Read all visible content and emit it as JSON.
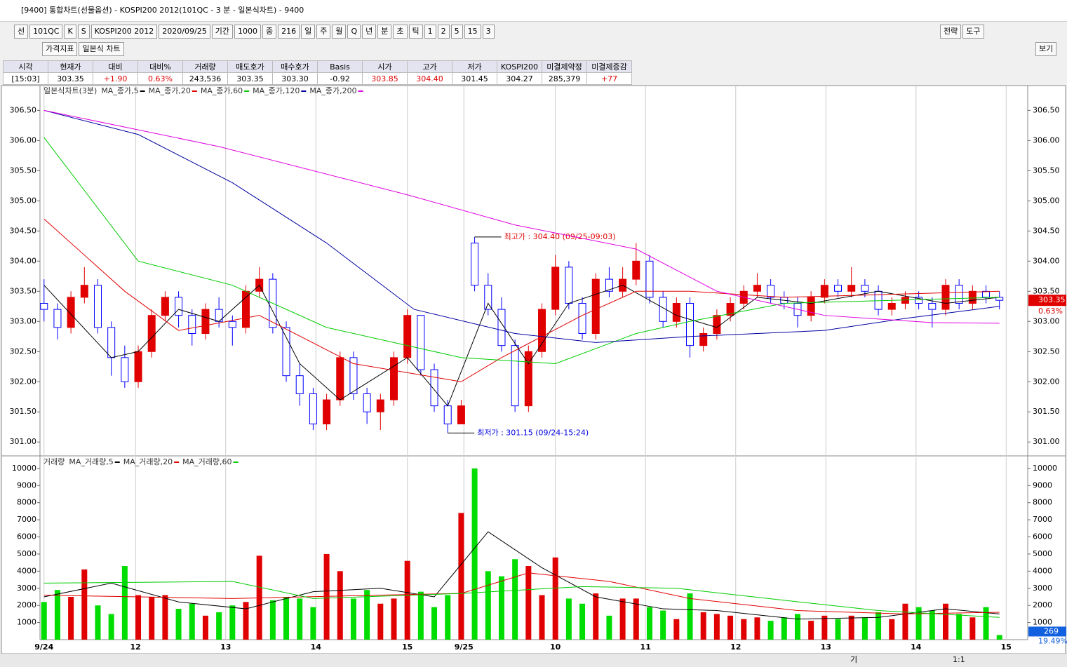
{
  "window": {
    "title": "[9400] 통합차트(선물옵션) - KOSPI200 2012(101QC - 3 분 - 일본식차트) - 9400"
  },
  "toolbar": {
    "row1": [
      "선",
      "101QC",
      "K",
      "S",
      "KOSPI200 2012",
      "2020/09/25",
      "기간",
      "1000",
      "중",
      "216",
      "일",
      "주",
      "월",
      "Q",
      "년",
      "분",
      "초",
      "틱",
      "1",
      "2",
      "5",
      "15",
      "3"
    ],
    "row1_right": [
      "전략",
      "도구"
    ],
    "row2": [
      "가격지표",
      "일본식 차트"
    ],
    "row2_right": [
      "보기"
    ]
  },
  "quote": {
    "headers": [
      "시각",
      "현재가",
      "대비",
      "대비%",
      "거래량",
      "매도호가",
      "매수호가",
      "Basis",
      "시가",
      "고가",
      "저가",
      "KOSPI200",
      "미결제약정",
      "미결제증감"
    ],
    "values": [
      "[15:03]",
      "303.35",
      "+1.90",
      "0.63%",
      "243,536",
      "303.35",
      "303.30",
      "-0.92",
      "303.85",
      "304.40",
      "301.45",
      "304.27",
      "285,379",
      "+77"
    ],
    "value_colors": [
      "#000",
      "#000",
      "#e00000",
      "#e00000",
      "#000",
      "#000",
      "#000",
      "#000",
      "#e00000",
      "#e00000",
      "#000",
      "#000",
      "#000",
      "#e00000"
    ]
  },
  "chart_data": [
    {
      "type": "candlestick",
      "title": "일본식차트(3분)",
      "up_color": "#e00000",
      "down_color": "#0000ff",
      "ohlc": [
        [
          303.3,
          303.7,
          303.0,
          303.2
        ],
        [
          303.2,
          303.3,
          302.7,
          302.9
        ],
        [
          302.9,
          303.5,
          302.8,
          303.4
        ],
        [
          303.4,
          303.9,
          303.3,
          303.6
        ],
        [
          303.6,
          303.7,
          302.8,
          302.9
        ],
        [
          302.9,
          303.0,
          302.1,
          302.4
        ],
        [
          302.4,
          302.6,
          301.9,
          302.0
        ],
        [
          302.0,
          302.6,
          301.9,
          302.5
        ],
        [
          302.5,
          303.2,
          302.4,
          303.1
        ],
        [
          303.1,
          303.5,
          303.0,
          303.4
        ],
        [
          303.4,
          303.5,
          302.9,
          303.1
        ],
        [
          303.1,
          303.2,
          302.6,
          302.8
        ],
        [
          302.8,
          303.3,
          302.7,
          303.2
        ],
        [
          303.2,
          303.4,
          302.9,
          303.0
        ],
        [
          303.0,
          303.1,
          302.6,
          302.9
        ],
        [
          302.9,
          303.6,
          302.8,
          303.5
        ],
        [
          303.5,
          303.9,
          303.4,
          303.7
        ],
        [
          303.7,
          303.8,
          302.8,
          302.9
        ],
        [
          302.9,
          303.0,
          302.0,
          302.1
        ],
        [
          302.1,
          302.3,
          301.6,
          301.8
        ],
        [
          301.8,
          301.9,
          301.2,
          301.3
        ],
        [
          301.3,
          301.8,
          301.2,
          301.7
        ],
        [
          301.7,
          302.5,
          301.6,
          302.4
        ],
        [
          302.4,
          302.5,
          301.7,
          301.8
        ],
        [
          301.8,
          301.9,
          301.3,
          301.5
        ],
        [
          301.5,
          301.8,
          301.2,
          301.7
        ],
        [
          301.7,
          302.5,
          301.6,
          302.4
        ],
        [
          302.4,
          303.2,
          302.3,
          303.1
        ],
        [
          303.1,
          303.1,
          302.1,
          302.2
        ],
        [
          302.2,
          302.3,
          301.5,
          301.6
        ],
        [
          301.6,
          301.7,
          301.15,
          301.3
        ],
        [
          301.3,
          301.7,
          301.3,
          301.6
        ],
        [
          304.3,
          304.4,
          303.5,
          303.6
        ],
        [
          303.6,
          303.8,
          303.1,
          303.2
        ],
        [
          303.2,
          303.4,
          302.5,
          302.6
        ],
        [
          302.6,
          302.7,
          301.5,
          301.6
        ],
        [
          301.6,
          302.6,
          301.5,
          302.5
        ],
        [
          302.5,
          303.3,
          302.4,
          303.2
        ],
        [
          303.2,
          304.1,
          303.1,
          303.9
        ],
        [
          303.9,
          304.0,
          303.2,
          303.3
        ],
        [
          303.3,
          303.4,
          302.7,
          302.8
        ],
        [
          302.8,
          303.8,
          302.7,
          303.7
        ],
        [
          303.7,
          303.9,
          303.4,
          303.5
        ],
        [
          303.5,
          303.9,
          303.4,
          303.7
        ],
        [
          303.7,
          304.3,
          303.6,
          304.0
        ],
        [
          304.0,
          304.1,
          303.3,
          303.4
        ],
        [
          303.4,
          303.5,
          302.9,
          303.0
        ],
        [
          303.0,
          303.4,
          302.9,
          303.3
        ],
        [
          303.3,
          303.4,
          302.4,
          302.6
        ],
        [
          302.6,
          302.9,
          302.5,
          302.8
        ],
        [
          302.8,
          303.2,
          302.7,
          303.1
        ],
        [
          303.1,
          303.4,
          303.0,
          303.3
        ],
        [
          303.3,
          303.6,
          303.2,
          303.5
        ],
        [
          303.5,
          303.8,
          303.4,
          303.6
        ],
        [
          303.6,
          303.7,
          303.3,
          303.4
        ],
        [
          303.4,
          303.5,
          303.2,
          303.3
        ],
        [
          303.3,
          303.4,
          302.9,
          303.1
        ],
        [
          303.1,
          303.5,
          303.0,
          303.4
        ],
        [
          303.4,
          303.7,
          303.3,
          303.6
        ],
        [
          303.6,
          303.7,
          303.4,
          303.5
        ],
        [
          303.5,
          303.9,
          303.4,
          303.6
        ],
        [
          303.6,
          303.7,
          303.4,
          303.5
        ],
        [
          303.5,
          303.6,
          303.1,
          303.2
        ],
        [
          303.2,
          303.4,
          303.1,
          303.3
        ],
        [
          303.3,
          303.5,
          303.2,
          303.4
        ],
        [
          303.4,
          303.5,
          303.2,
          303.3
        ],
        [
          303.3,
          303.4,
          302.9,
          303.2
        ],
        [
          303.2,
          303.7,
          303.1,
          303.6
        ],
        [
          303.6,
          303.7,
          303.2,
          303.3
        ],
        [
          303.3,
          303.6,
          303.2,
          303.5
        ],
        [
          303.5,
          303.6,
          303.3,
          303.4
        ],
        [
          303.4,
          303.5,
          303.2,
          303.35
        ]
      ],
      "series": [
        {
          "name": "MA_종가,5",
          "color": "#000000",
          "x": [
            0,
            5,
            7,
            10,
            13,
            16,
            19,
            22,
            27,
            30,
            33,
            36,
            39,
            43,
            47,
            50,
            53,
            57,
            62,
            67,
            71
          ],
          "values": [
            303.6,
            302.4,
            302.5,
            303.2,
            303.0,
            303.6,
            302.3,
            301.7,
            302.4,
            301.6,
            303.3,
            302.3,
            303.3,
            303.6,
            303.1,
            302.9,
            303.4,
            303.3,
            303.5,
            303.3,
            303.4
          ]
        },
        {
          "name": "MA_종가,20",
          "color": "#e00000",
          "x": [
            0,
            6,
            10,
            16,
            23,
            31,
            34,
            40,
            44,
            48,
            55,
            71
          ],
          "values": [
            304.7,
            303.5,
            302.85,
            303.1,
            302.3,
            302.0,
            302.4,
            303.1,
            303.5,
            303.5,
            303.4,
            303.5
          ]
        },
        {
          "name": "MA_종가,60",
          "color": "#00cc00",
          "x": [
            0,
            7,
            14,
            21,
            31,
            38,
            44,
            48,
            55,
            71
          ],
          "values": [
            306.05,
            304.0,
            303.6,
            302.9,
            302.4,
            302.3,
            302.8,
            303.0,
            303.3,
            303.4
          ]
        },
        {
          "name": "MA_종가,120",
          "color": "#0000a0",
          "x": [
            0,
            7,
            14,
            21,
            27.5,
            35,
            41,
            48,
            58,
            64,
            71
          ],
          "values": [
            306.5,
            306.1,
            305.3,
            304.3,
            303.2,
            302.8,
            302.65,
            302.75,
            302.85,
            303.05,
            303.25
          ]
        },
        {
          "name": "MA_종가,200",
          "color": "#e000e0",
          "x": [
            0,
            13,
            27,
            35,
            44,
            50,
            58,
            66,
            71
          ],
          "values": [
            306.5,
            305.9,
            305.1,
            304.6,
            304.2,
            303.5,
            303.1,
            302.98,
            302.97
          ]
        }
      ],
      "annotations": [
        {
          "text": "최고가 : 304.40 (09/25-09:03)",
          "x": 32,
          "y": 304.4,
          "color": "#e00000"
        },
        {
          "text": "최저가 : 301.15 (09/24-15:24)",
          "x": 30,
          "y": 301.15,
          "color": "#0000e0"
        }
      ],
      "last_label": "303.35",
      "change_label": "0.63%",
      "xlim": [
        -0.3,
        73.1
      ],
      "ylim": [
        300.77,
        306.9
      ],
      "yticks": [
        {
          "value": 301,
          "label": "301.00"
        },
        {
          "value": 301.5,
          "label": "301.50"
        },
        {
          "value": 302,
          "label": "302.00"
        },
        {
          "value": 302.5,
          "label": "302.50"
        },
        {
          "value": 303,
          "label": "303.00"
        },
        {
          "value": 303.5,
          "label": "303.50"
        },
        {
          "value": 304,
          "label": "304.00"
        },
        {
          "value": 304.5,
          "label": "304.50"
        },
        {
          "value": 305,
          "label": "305.00"
        },
        {
          "value": 305.5,
          "label": "305.50"
        },
        {
          "value": 306,
          "label": "306.00"
        },
        {
          "value": 306.5,
          "label": "306.50"
        }
      ]
    },
    {
      "type": "bar",
      "title": "거래량",
      "up_color": "#e00000",
      "down_color": "#00dd00",
      "values": [
        2200,
        2900,
        2500,
        4100,
        2000,
        1500,
        4300,
        2600,
        2500,
        2600,
        1800,
        2100,
        1400,
        1600,
        2000,
        2200,
        4900,
        2300,
        2500,
        2400,
        1900,
        5000,
        4000,
        2400,
        2900,
        2100,
        2400,
        4600,
        2800,
        1900,
        2600,
        7400,
        10000,
        4000,
        3700,
        4700,
        4300,
        2600,
        4800,
        2400,
        2100,
        2700,
        1400,
        2400,
        2400,
        1900,
        1700,
        1200,
        2700,
        1600,
        1500,
        1400,
        1200,
        1300,
        1100,
        1300,
        1500,
        1100,
        1400,
        1200,
        1400,
        1300,
        1600,
        1200,
        2100,
        1900,
        1700,
        2100,
        1500,
        1300,
        1900,
        269
      ],
      "series": [
        {
          "name": "MA_거래량,5",
          "color": "#000000",
          "x": [
            0,
            5,
            10,
            15,
            20,
            25,
            29,
            33,
            37,
            41,
            46,
            50,
            56,
            62,
            67,
            71
          ],
          "values": [
            2500,
            3300,
            2200,
            1800,
            2800,
            3000,
            2500,
            6300,
            4200,
            2500,
            1800,
            1700,
            1200,
            1300,
            1800,
            1500
          ]
        },
        {
          "name": "MA_거래량,20",
          "color": "#e00000",
          "x": [
            0,
            14,
            25,
            31,
            36,
            42,
            48,
            56,
            64,
            71
          ],
          "values": [
            2600,
            2400,
            2600,
            2700,
            3900,
            3400,
            2400,
            1700,
            1500,
            1600
          ]
        },
        {
          "name": "MA_거래량,60",
          "color": "#00cc00",
          "x": [
            0,
            14,
            20,
            31,
            40,
            47,
            55,
            62,
            71
          ],
          "values": [
            3300,
            3400,
            2400,
            2700,
            3100,
            3000,
            2300,
            1700,
            1300
          ]
        }
      ],
      "last_label": "269",
      "change_label": "19.49%",
      "xlim": [
        -0.3,
        73.1
      ],
      "ylim": [
        0,
        10650
      ],
      "yticks": [
        1000,
        2000,
        3000,
        4000,
        5000,
        6000,
        7000,
        8000,
        9000,
        10000
      ],
      "xticks": [
        {
          "value": 0,
          "label": "9/24"
        },
        {
          "value": 6.8,
          "label": "12"
        },
        {
          "value": 13.5,
          "label": "13"
        },
        {
          "value": 20.2,
          "label": "14"
        },
        {
          "value": 27,
          "label": "15"
        },
        {
          "value": 31.2,
          "label": "9/25"
        },
        {
          "value": 38,
          "label": "10"
        },
        {
          "value": 44.7,
          "label": "11"
        },
        {
          "value": 51.4,
          "label": "12"
        },
        {
          "value": 58.1,
          "label": "13"
        },
        {
          "value": 64.8,
          "label": "14"
        },
        {
          "value": 71.5,
          "label": "15"
        }
      ]
    }
  ],
  "bottom": {
    "buttons": [
      "기",
      "1:1"
    ]
  }
}
